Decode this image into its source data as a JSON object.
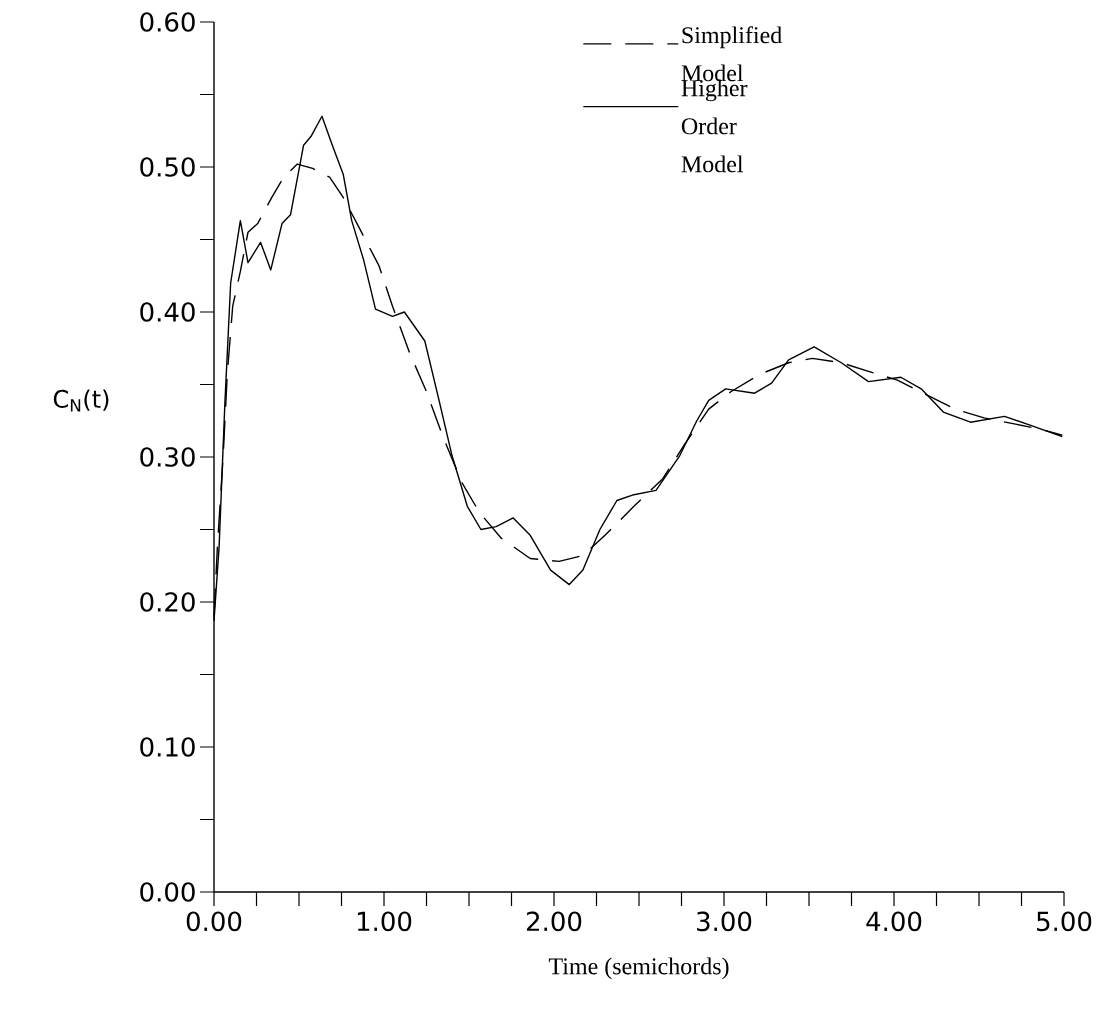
{
  "chart_data": {
    "type": "line",
    "xlabel": "Time (semichords)",
    "ylabel": "C$_{N}$(t)",
    "xlim": [
      0,
      5
    ],
    "ylim": [
      0,
      0.6
    ],
    "xticks": [
      {
        "value": 0,
        "label": "0.00"
      },
      {
        "value": 1,
        "label": "1.00"
      },
      {
        "value": 2,
        "label": "2.00"
      },
      {
        "value": 3,
        "label": "3.00"
      },
      {
        "value": 4,
        "label": "4.00"
      },
      {
        "value": 5,
        "label": "5.00"
      }
    ],
    "yticks": [
      {
        "value": 0,
        "label": "0.00"
      },
      {
        "value": 0.1,
        "label": "0.10"
      },
      {
        "value": 0.2,
        "label": "0.20"
      },
      {
        "value": 0.3,
        "label": "0.30"
      },
      {
        "value": 0.4,
        "label": "0.40"
      },
      {
        "value": 0.5,
        "label": "0.50"
      },
      {
        "value": 0.6,
        "label": "0.60"
      }
    ],
    "legend": "top right",
    "series": [
      {
        "name": "Simplified Model",
        "color": "#000000",
        "line_style": "dashed",
        "x": [
          0,
          0.02,
          0.054,
          0.078,
          0.11,
          0.155,
          0.2,
          0.257,
          0.34,
          0.41,
          0.49,
          0.58,
          0.68,
          0.76,
          0.85,
          0.97,
          1.05,
          1.15,
          1.25,
          1.35,
          1.46,
          1.56,
          1.69,
          1.86,
          2.03,
          2.17,
          2.3,
          2.47,
          2.64,
          2.77,
          2.91,
          3.04,
          3.21,
          3.38,
          3.52,
          3.69,
          3.85,
          4.02,
          4.19,
          4.36,
          4.53,
          4.7,
          4.87,
          4.99
        ],
        "values": [
          0.19,
          0.238,
          0.301,
          0.357,
          0.404,
          0.428,
          0.455,
          0.461,
          0.479,
          0.493,
          0.502,
          0.499,
          0.493,
          0.479,
          0.459,
          0.432,
          0.404,
          0.372,
          0.345,
          0.313,
          0.282,
          0.262,
          0.244,
          0.23,
          0.228,
          0.232,
          0.246,
          0.266,
          0.285,
          0.309,
          0.333,
          0.345,
          0.357,
          0.365,
          0.368,
          0.365,
          0.359,
          0.353,
          0.343,
          0.333,
          0.327,
          0.323,
          0.319,
          0.315
        ]
      },
      {
        "name": "Higher Order Model",
        "color": "#000000",
        "line_style": "solid",
        "x": [
          0,
          0.03,
          0.064,
          0.098,
          0.155,
          0.2,
          0.274,
          0.334,
          0.4,
          0.45,
          0.527,
          0.57,
          0.635,
          0.696,
          0.76,
          0.81,
          0.88,
          0.95,
          1.05,
          1.12,
          1.24,
          1.32,
          1.4,
          1.49,
          1.57,
          1.66,
          1.76,
          1.86,
          1.98,
          2.09,
          2.17,
          2.27,
          2.37,
          2.47,
          2.6,
          2.74,
          2.84,
          2.91,
          3.01,
          3.18,
          3.28,
          3.38,
          3.53,
          3.69,
          3.85,
          4.04,
          4.16,
          4.29,
          4.45,
          4.65,
          4.8,
          4.99
        ],
        "values": [
          0.187,
          0.238,
          0.337,
          0.42,
          0.463,
          0.434,
          0.448,
          0.429,
          0.461,
          0.467,
          0.515,
          0.521,
          0.535,
          0.515,
          0.495,
          0.463,
          0.436,
          0.402,
          0.397,
          0.4,
          0.38,
          0.341,
          0.301,
          0.266,
          0.25,
          0.252,
          0.258,
          0.246,
          0.222,
          0.212,
          0.222,
          0.25,
          0.27,
          0.274,
          0.277,
          0.301,
          0.325,
          0.339,
          0.347,
          0.344,
          0.351,
          0.367,
          0.376,
          0.365,
          0.352,
          0.355,
          0.347,
          0.331,
          0.324,
          0.328,
          0.322,
          0.314
        ]
      }
    ]
  }
}
